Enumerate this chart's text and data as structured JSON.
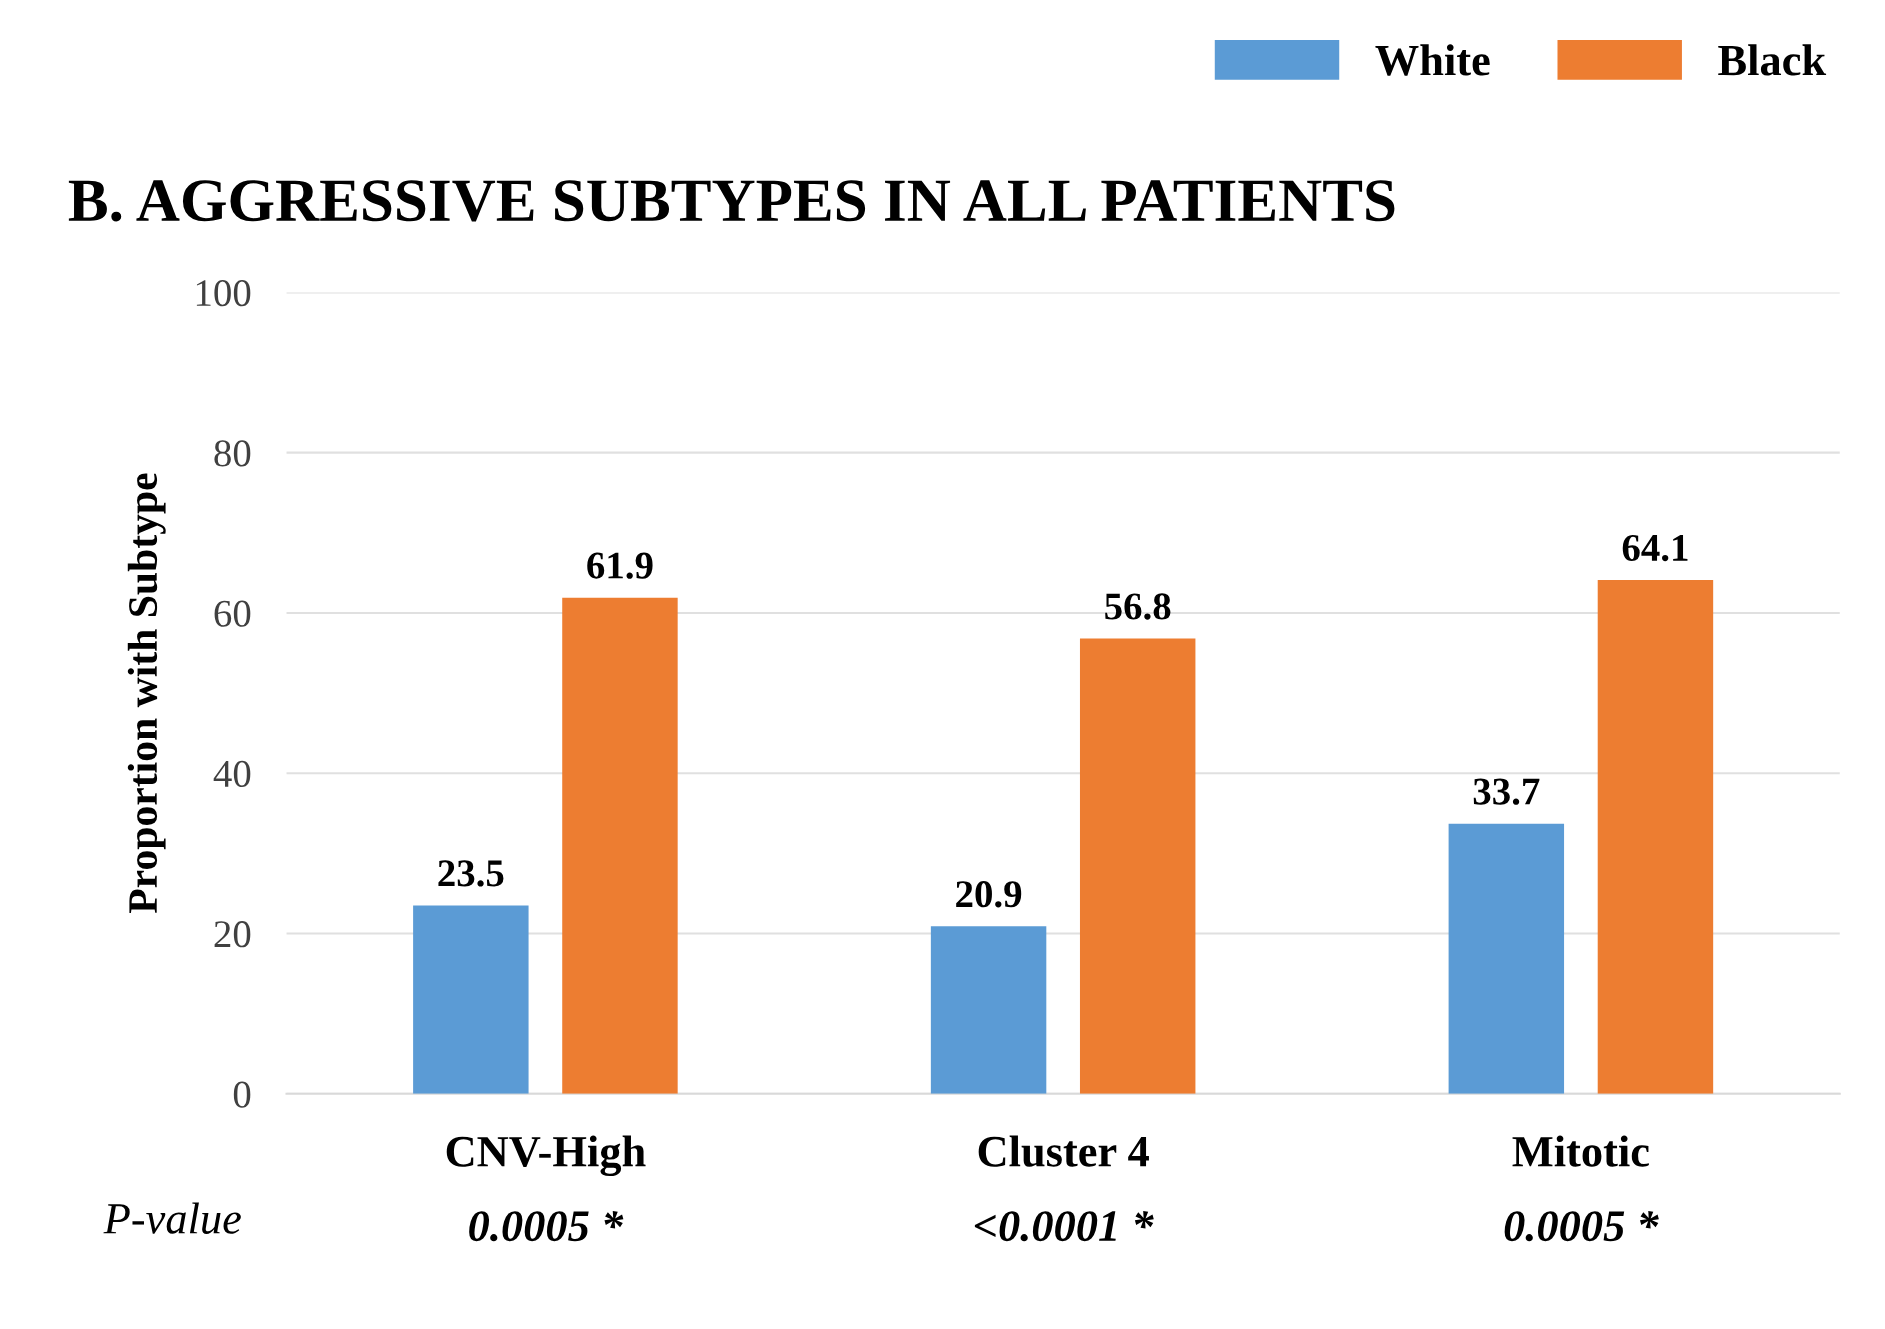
{
  "chart_data": {
    "type": "bar",
    "title": "B. AGGRESSIVE SUBTYPES IN ALL PATIENTS",
    "ylabel": "Proportion with Subtype",
    "categories": [
      "CNV-High",
      "Cluster 4",
      "Mitotic"
    ],
    "series": [
      {
        "name": "White",
        "color": "#5b9bd5",
        "values": [
          23.5,
          20.9,
          33.7
        ]
      },
      {
        "name": "Black",
        "color": "#ed7d31",
        "values": [
          61.9,
          56.8,
          64.1
        ]
      }
    ],
    "ylim": [
      0,
      100
    ],
    "yticks": [
      0,
      20,
      40,
      60,
      80,
      100
    ],
    "grid": "y",
    "legend": "top right",
    "data_labels": true,
    "annotations": [
      "P-value",
      "0.0005 *",
      "<0.0001 *",
      "0.0005 *"
    ]
  }
}
